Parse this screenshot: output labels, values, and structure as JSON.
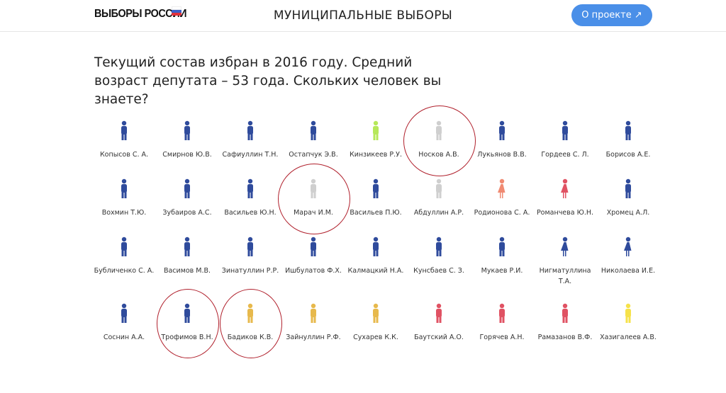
{
  "header": {
    "logo": "ВЫБОРЫ РОССИИ",
    "title": "МУНИЦИПАЛЬНЫЕ ВЫБОРЫ",
    "about_button": "О проекте ↗"
  },
  "intro": "Текущий состав избран в 2016 году. Средний возраст депутата – 53 года. Скольких человек вы знаете?",
  "colors": {
    "blue": "#2f4b9c",
    "green": "#b6e85a",
    "gray": "#cfcfcf",
    "salmon": "#f08a72",
    "red": "#e05263",
    "gold": "#e7b94c",
    "yellow": "#f6e24a",
    "annotation": "#b0202c"
  },
  "members": [
    {
      "name": "Копысов С. А.",
      "color": "blue",
      "gender": "m"
    },
    {
      "name": "Смирнов Ю.В.",
      "color": "blue",
      "gender": "m"
    },
    {
      "name": "Сафиуллин Т.Н.",
      "color": "blue",
      "gender": "m"
    },
    {
      "name": "Остапчук Э.В.",
      "color": "blue",
      "gender": "m"
    },
    {
      "name": "Кинзикеев Р.У.",
      "color": "green",
      "gender": "m"
    },
    {
      "name": "Носков А.В.",
      "color": "gray",
      "gender": "m",
      "circled": true
    },
    {
      "name": "Лукьянов В.В.",
      "color": "blue",
      "gender": "m"
    },
    {
      "name": "Гордеев С. Л.",
      "color": "blue",
      "gender": "m"
    },
    {
      "name": "Борисов А.Е.",
      "color": "blue",
      "gender": "m"
    },
    {
      "name": "Вохмин Т.Ю.",
      "color": "blue",
      "gender": "m"
    },
    {
      "name": "Зубаиров А.С.",
      "color": "blue",
      "gender": "m"
    },
    {
      "name": "Васильев Ю.Н.",
      "color": "blue",
      "gender": "m"
    },
    {
      "name": "Марач И.М.",
      "color": "gray",
      "gender": "m",
      "circled": true
    },
    {
      "name": "Васильев П.Ю.",
      "color": "blue",
      "gender": "m"
    },
    {
      "name": "Абдуллин А.Р.",
      "color": "gray",
      "gender": "m"
    },
    {
      "name": "Родионова С. А.",
      "color": "salmon",
      "gender": "f"
    },
    {
      "name": "Романчева Ю.Н.",
      "color": "red",
      "gender": "f"
    },
    {
      "name": "Хромец А.Л.",
      "color": "blue",
      "gender": "m"
    },
    {
      "name": "Бубличенко С. А.",
      "color": "blue",
      "gender": "m"
    },
    {
      "name": "Васимов М.В.",
      "color": "blue",
      "gender": "m"
    },
    {
      "name": "Зинатуллин Р.Р.",
      "color": "blue",
      "gender": "m"
    },
    {
      "name": "Ишбулатов Ф.Х.",
      "color": "blue",
      "gender": "m"
    },
    {
      "name": "Калмацкий Н.А.",
      "color": "blue",
      "gender": "m"
    },
    {
      "name": "Кунсбаев С. З.",
      "color": "blue",
      "gender": "m"
    },
    {
      "name": "Мукаев Р.И.",
      "color": "blue",
      "gender": "m"
    },
    {
      "name": "Нигматуллина Т.А.",
      "color": "blue",
      "gender": "f"
    },
    {
      "name": "Николаева И.Е.",
      "color": "blue",
      "gender": "f"
    },
    {
      "name": "Соснин А.А.",
      "color": "blue",
      "gender": "m"
    },
    {
      "name": "Трофимов В.Н.",
      "color": "blue",
      "gender": "m",
      "circled": true
    },
    {
      "name": "Бадиков К.В.",
      "color": "gold",
      "gender": "m",
      "circled": true
    },
    {
      "name": "Зайнуллин Р.Ф.",
      "color": "gold",
      "gender": "m"
    },
    {
      "name": "Сухарев К.К.",
      "color": "gold",
      "gender": "m"
    },
    {
      "name": "Баутский А.О.",
      "color": "red",
      "gender": "m"
    },
    {
      "name": "Горячев А.Н.",
      "color": "red",
      "gender": "m"
    },
    {
      "name": "Рамазанов В.Ф.",
      "color": "red",
      "gender": "m"
    },
    {
      "name": "Хазигалеев А.В.",
      "color": "yellow",
      "gender": "m"
    }
  ]
}
